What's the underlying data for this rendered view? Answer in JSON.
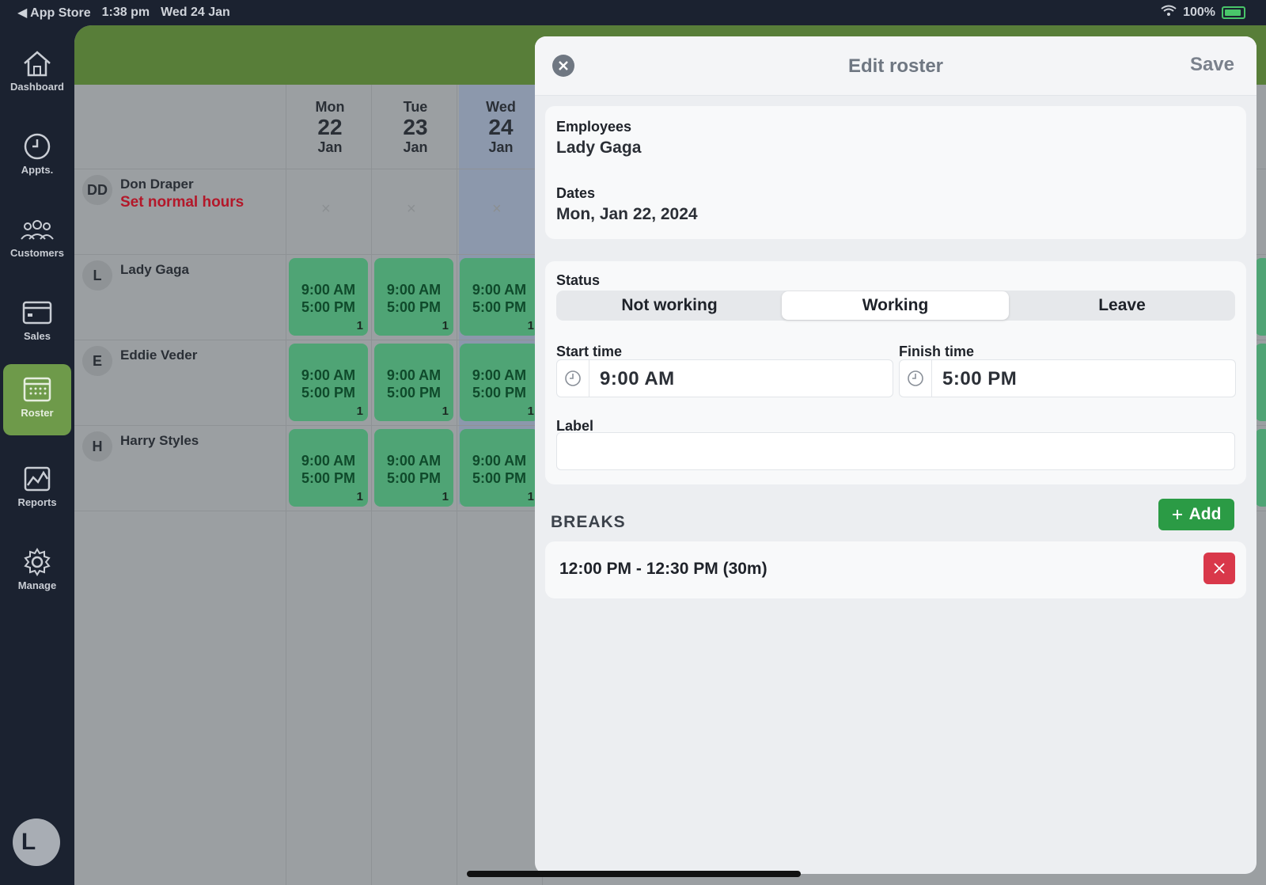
{
  "status_bar": {
    "back_app": "◀ App Store",
    "time": "1:38 pm",
    "date": "Wed 24 Jan",
    "battery": "100%"
  },
  "sidebar": {
    "items": [
      {
        "label": "Dashboard",
        "icon": "home-icon"
      },
      {
        "label": "Appts.",
        "icon": "clock-icon"
      },
      {
        "label": "Customers",
        "icon": "people-icon"
      },
      {
        "label": "Sales",
        "icon": "card-icon"
      },
      {
        "label": "Roster",
        "icon": "calendar-icon",
        "active": true
      },
      {
        "label": "Reports",
        "icon": "chart-icon"
      },
      {
        "label": "Manage",
        "icon": "gear-icon"
      }
    ],
    "user_initial": "L"
  },
  "roster": {
    "days": [
      {
        "dow": "Mon",
        "num": "22",
        "month": "Jan"
      },
      {
        "dow": "Tue",
        "num": "23",
        "month": "Jan"
      },
      {
        "dow": "Wed",
        "num": "24",
        "month": "Jan"
      }
    ],
    "employees": [
      {
        "initials": "DD",
        "name": "Don Draper",
        "sub": "Set normal hours"
      },
      {
        "initials": "L",
        "name": "Lady Gaga"
      },
      {
        "initials": "E",
        "name": "Eddie Veder"
      },
      {
        "initials": "H",
        "name": "Harry Styles"
      }
    ],
    "shift": {
      "start": "9:00 AM",
      "end": "5:00 PM",
      "count": "1"
    },
    "empty_mark": "×"
  },
  "panel": {
    "title": "Edit roster",
    "save_label": "Save",
    "close_icon": "close-icon",
    "employees_label": "Employees",
    "employees_value": "Lady Gaga",
    "dates_label": "Dates",
    "dates_value": "Mon, Jan 22, 2024",
    "status_label": "Status",
    "status_options": [
      "Not working",
      "Working",
      "Leave"
    ],
    "status_selected": "Working",
    "start_label": "Start time",
    "start_value": "9:00 AM",
    "finish_label": "Finish time",
    "finish_value": "5:00 PM",
    "label_label": "Label",
    "label_value": "",
    "breaks_heading": "BREAKS",
    "add_label": "Add",
    "breaks": [
      {
        "text": "12:00 PM - 12:30 PM (30m)"
      }
    ]
  },
  "colors": {
    "accent_green": "#587e39",
    "shift_green": "#4fa475",
    "danger_red": "#d9384a",
    "add_green": "#2b9b45"
  }
}
